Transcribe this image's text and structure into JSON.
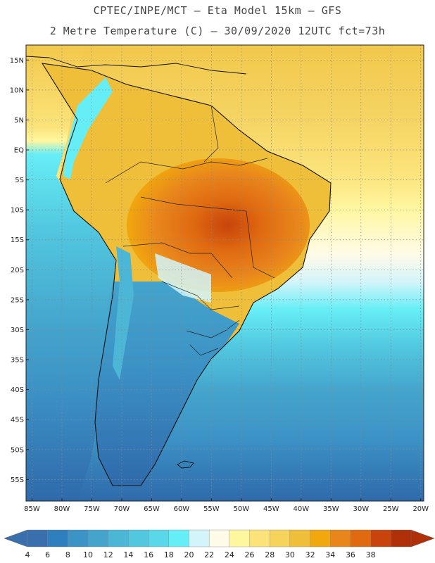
{
  "title": {
    "line1": "CPTEC/INPE/MCT –  Eta Model 15km – GFS",
    "line2": "2 Metre Temperature (C) – 30/09/2020 12UTC fct=73h"
  },
  "map": {
    "lat_labels": [
      "15N",
      "10N",
      "5N",
      "EQ",
      "5S",
      "10S",
      "15S",
      "20S",
      "25S",
      "30S",
      "35S",
      "40S",
      "45S",
      "50S",
      "55S"
    ],
    "lon_labels": [
      "85W",
      "80W",
      "75W",
      "70W",
      "65W",
      "60W",
      "55W",
      "50W",
      "45W",
      "40W",
      "35W",
      "30W",
      "25W",
      "20W"
    ],
    "lat_values": [
      15,
      10,
      5,
      0,
      -5,
      -10,
      -15,
      -20,
      -25,
      -30,
      -35,
      -40,
      -45,
      -50,
      -55
    ],
    "lon_values": [
      -85,
      -80,
      -75,
      -70,
      -65,
      -60,
      -55,
      -50,
      -45,
      -40,
      -35,
      -30,
      -25,
      -20
    ]
  },
  "colorbar": {
    "labels": [
      "4",
      "6",
      "8",
      "10",
      "12",
      "14",
      "16",
      "18",
      "20",
      "22",
      "24",
      "26",
      "28",
      "30",
      "32",
      "34",
      "36",
      "38"
    ],
    "colors": [
      "#3a6fae",
      "#2f7fbe",
      "#3c93c6",
      "#44a4cc",
      "#4cb6d6",
      "#52c8e0",
      "#59d8ea",
      "#66eef6",
      "#d2f4fa",
      "#fffbe8",
      "#fff6a0",
      "#fbe37a",
      "#f6d35a",
      "#efbf3a",
      "#f1a70e",
      "#e8861c",
      "#e06a10",
      "#c8440c",
      "#b0300a"
    ],
    "left_arrow_color": "#3a6fae",
    "right_arrow_color": "#b0300a"
  }
}
